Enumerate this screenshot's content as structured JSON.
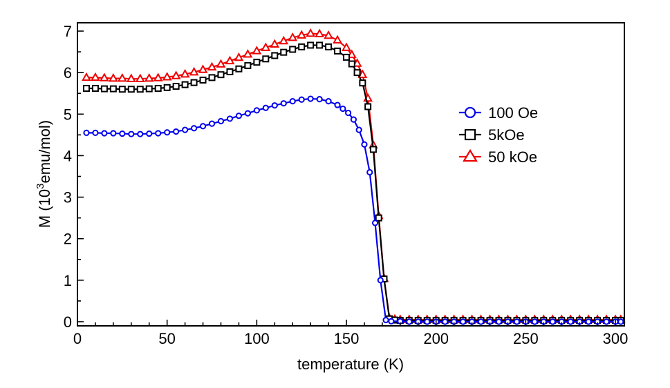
{
  "chart_data": {
    "type": "line",
    "xlabel": "temperature (K)",
    "ylabel": {
      "prefix": "M (10",
      "superscript": "3",
      "suffix": "emu/mol)"
    },
    "xlim": [
      0,
      305
    ],
    "ylim": [
      -0.1,
      7.2
    ],
    "xticks": [
      0,
      50,
      100,
      150,
      200,
      250,
      300
    ],
    "yticks": [
      0,
      1,
      2,
      3,
      4,
      5,
      6,
      7
    ],
    "grid": false,
    "legend": {
      "placement": "right"
    },
    "series": [
      {
        "name": "100 Oe",
        "color": "#0000ee",
        "marker": "circle",
        "points": [
          [
            5,
            4.55
          ],
          [
            10,
            4.55
          ],
          [
            15,
            4.54
          ],
          [
            20,
            4.54
          ],
          [
            25,
            4.53
          ],
          [
            30,
            4.52
          ],
          [
            35,
            4.52
          ],
          [
            40,
            4.53
          ],
          [
            45,
            4.54
          ],
          [
            50,
            4.56
          ],
          [
            55,
            4.58
          ],
          [
            60,
            4.62
          ],
          [
            65,
            4.66
          ],
          [
            70,
            4.71
          ],
          [
            75,
            4.77
          ],
          [
            80,
            4.83
          ],
          [
            85,
            4.89
          ],
          [
            90,
            4.96
          ],
          [
            95,
            5.02
          ],
          [
            100,
            5.09
          ],
          [
            105,
            5.15
          ],
          [
            110,
            5.21
          ],
          [
            115,
            5.26
          ],
          [
            120,
            5.31
          ],
          [
            125,
            5.35
          ],
          [
            130,
            5.37
          ],
          [
            135,
            5.36
          ],
          [
            140,
            5.31
          ],
          [
            145,
            5.22
          ],
          [
            148,
            5.13
          ],
          [
            151,
            5.03
          ],
          [
            154,
            4.87
          ],
          [
            157,
            4.62
          ],
          [
            160,
            4.27
          ],
          [
            163,
            3.6
          ],
          [
            166,
            2.38
          ],
          [
            169,
            1.0
          ],
          [
            172,
            0.04
          ],
          [
            175,
            0.01
          ],
          [
            180,
            0.01
          ],
          [
            185,
            0.0
          ],
          [
            190,
            0.0
          ],
          [
            195,
            0.0
          ],
          [
            200,
            0.0
          ],
          [
            205,
            0.0
          ],
          [
            210,
            0.0
          ],
          [
            215,
            0.0
          ],
          [
            220,
            0.0
          ],
          [
            225,
            0.0
          ],
          [
            230,
            0.0
          ],
          [
            235,
            0.0
          ],
          [
            240,
            0.0
          ],
          [
            245,
            0.0
          ],
          [
            250,
            0.0
          ],
          [
            255,
            0.0
          ],
          [
            260,
            0.0
          ],
          [
            265,
            0.0
          ],
          [
            270,
            0.0
          ],
          [
            275,
            0.0
          ],
          [
            280,
            0.0
          ],
          [
            285,
            0.0
          ],
          [
            290,
            0.0
          ],
          [
            295,
            0.0
          ],
          [
            300,
            0.0
          ],
          [
            303,
            0.0
          ]
        ]
      },
      {
        "name": "5kOe",
        "color": "#000000",
        "marker": "square",
        "points": [
          [
            5,
            5.62
          ],
          [
            10,
            5.62
          ],
          [
            15,
            5.61
          ],
          [
            20,
            5.61
          ],
          [
            25,
            5.6
          ],
          [
            30,
            5.6
          ],
          [
            35,
            5.6
          ],
          [
            40,
            5.61
          ],
          [
            45,
            5.62
          ],
          [
            50,
            5.64
          ],
          [
            55,
            5.67
          ],
          [
            60,
            5.71
          ],
          [
            65,
            5.76
          ],
          [
            70,
            5.82
          ],
          [
            75,
            5.88
          ],
          [
            80,
            5.95
          ],
          [
            85,
            6.02
          ],
          [
            90,
            6.09
          ],
          [
            95,
            6.17
          ],
          [
            100,
            6.25
          ],
          [
            105,
            6.33
          ],
          [
            110,
            6.41
          ],
          [
            115,
            6.49
          ],
          [
            120,
            6.56
          ],
          [
            125,
            6.62
          ],
          [
            130,
            6.66
          ],
          [
            135,
            6.66
          ],
          [
            140,
            6.62
          ],
          [
            145,
            6.52
          ],
          [
            150,
            6.37
          ],
          [
            153,
            6.21
          ],
          [
            156,
            6.0
          ],
          [
            159,
            5.75
          ],
          [
            162,
            5.18
          ],
          [
            165,
            4.15
          ],
          [
            168,
            2.5
          ],
          [
            171,
            1.03
          ],
          [
            174,
            0.07
          ],
          [
            177,
            0.04
          ],
          [
            180,
            0.03
          ],
          [
            185,
            0.03
          ],
          [
            190,
            0.03
          ],
          [
            195,
            0.03
          ],
          [
            200,
            0.03
          ],
          [
            205,
            0.03
          ],
          [
            210,
            0.03
          ],
          [
            215,
            0.03
          ],
          [
            220,
            0.03
          ],
          [
            225,
            0.03
          ],
          [
            230,
            0.03
          ],
          [
            235,
            0.03
          ],
          [
            240,
            0.03
          ],
          [
            245,
            0.03
          ],
          [
            250,
            0.03
          ],
          [
            255,
            0.03
          ],
          [
            260,
            0.03
          ],
          [
            265,
            0.03
          ],
          [
            270,
            0.03
          ],
          [
            275,
            0.03
          ],
          [
            280,
            0.03
          ],
          [
            285,
            0.03
          ],
          [
            290,
            0.03
          ],
          [
            295,
            0.03
          ],
          [
            300,
            0.03
          ],
          [
            303,
            0.03
          ]
        ]
      },
      {
        "name": "50 kOe",
        "color": "#ee0000",
        "marker": "triangle",
        "points": [
          [
            5,
            5.88
          ],
          [
            10,
            5.88
          ],
          [
            15,
            5.87
          ],
          [
            20,
            5.86
          ],
          [
            25,
            5.86
          ],
          [
            30,
            5.85
          ],
          [
            35,
            5.85
          ],
          [
            40,
            5.86
          ],
          [
            45,
            5.87
          ],
          [
            50,
            5.89
          ],
          [
            55,
            5.92
          ],
          [
            60,
            5.96
          ],
          [
            65,
            6.01
          ],
          [
            70,
            6.07
          ],
          [
            75,
            6.13
          ],
          [
            80,
            6.2
          ],
          [
            85,
            6.28
          ],
          [
            90,
            6.36
          ],
          [
            95,
            6.44
          ],
          [
            100,
            6.52
          ],
          [
            105,
            6.6
          ],
          [
            110,
            6.68
          ],
          [
            115,
            6.76
          ],
          [
            120,
            6.84
          ],
          [
            125,
            6.9
          ],
          [
            130,
            6.94
          ],
          [
            135,
            6.93
          ],
          [
            140,
            6.89
          ],
          [
            145,
            6.78
          ],
          [
            150,
            6.6
          ],
          [
            153,
            6.43
          ],
          [
            156,
            6.22
          ],
          [
            159,
            5.95
          ],
          [
            162,
            5.38
          ],
          [
            165,
            4.25
          ],
          [
            168,
            2.55
          ],
          [
            171,
            1.04
          ],
          [
            174,
            0.08
          ],
          [
            177,
            0.06
          ],
          [
            180,
            0.05
          ],
          [
            185,
            0.05
          ],
          [
            190,
            0.05
          ],
          [
            195,
            0.05
          ],
          [
            200,
            0.05
          ],
          [
            205,
            0.05
          ],
          [
            210,
            0.05
          ],
          [
            215,
            0.05
          ],
          [
            220,
            0.05
          ],
          [
            225,
            0.05
          ],
          [
            230,
            0.05
          ],
          [
            235,
            0.05
          ],
          [
            240,
            0.05
          ],
          [
            245,
            0.05
          ],
          [
            250,
            0.05
          ],
          [
            255,
            0.05
          ],
          [
            260,
            0.05
          ],
          [
            265,
            0.05
          ],
          [
            270,
            0.05
          ],
          [
            275,
            0.05
          ],
          [
            280,
            0.05
          ],
          [
            285,
            0.05
          ],
          [
            290,
            0.05
          ],
          [
            295,
            0.05
          ],
          [
            300,
            0.05
          ],
          [
            303,
            0.05
          ]
        ]
      }
    ]
  }
}
